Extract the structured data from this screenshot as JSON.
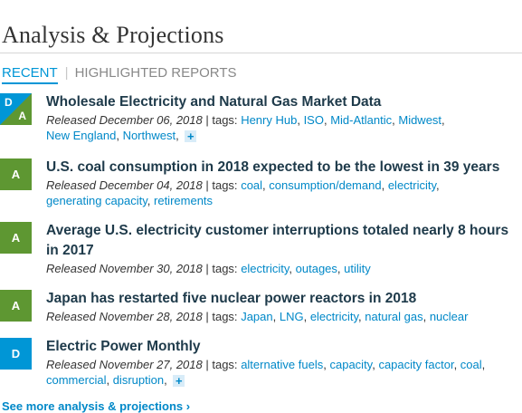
{
  "section": {
    "title": "Analysis & Projections"
  },
  "tabs": [
    {
      "label": "RECENT"
    },
    {
      "label": "HIGHLIGHTED REPORTS"
    }
  ],
  "tab_separator": "|",
  "released_prefix": "Released",
  "tags_prefix": "| tags:",
  "items": [
    {
      "badge": [
        "D",
        "A"
      ],
      "title": "Wholesale Electricity and Natural Gas Market Data",
      "date": "December 06, 2018",
      "tags": [
        "Henry Hub",
        "ISO",
        "Mid-Atlantic",
        "Midwest",
        "New England",
        "Northwest"
      ],
      "more_tags": "+"
    },
    {
      "badge": [
        "A"
      ],
      "title": "U.S. coal consumption in 2018 expected to be the lowest in 39 years",
      "date": "December 04, 2018",
      "tags": [
        "coal",
        "consumption/demand",
        "electricity",
        "generating capacity",
        "retirements"
      ]
    },
    {
      "badge": [
        "A"
      ],
      "title": "Average U.S. electricity customer interruptions totaled nearly 8 hours in 2017",
      "date": "November 30, 2018",
      "tags": [
        "electricity",
        "outages",
        "utility"
      ]
    },
    {
      "badge": [
        "A"
      ],
      "title": "Japan has restarted five nuclear power reactors in 2018",
      "date": "November 28, 2018",
      "tags": [
        "Japan",
        "LNG",
        "electricity",
        "natural gas",
        "nuclear"
      ]
    },
    {
      "badge": [
        "D"
      ],
      "title": "Electric Power Monthly",
      "date": "November 27, 2018",
      "tags": [
        "alternative fuels",
        "capacity",
        "capacity factor",
        "coal",
        "commercial",
        "disruption"
      ],
      "more_tags": "+"
    }
  ],
  "more_link": "See more analysis & projections ›",
  "colors": {
    "accent_blue": "#0096d6",
    "analysis_green": "#5e9732",
    "link": "#0088c8"
  }
}
